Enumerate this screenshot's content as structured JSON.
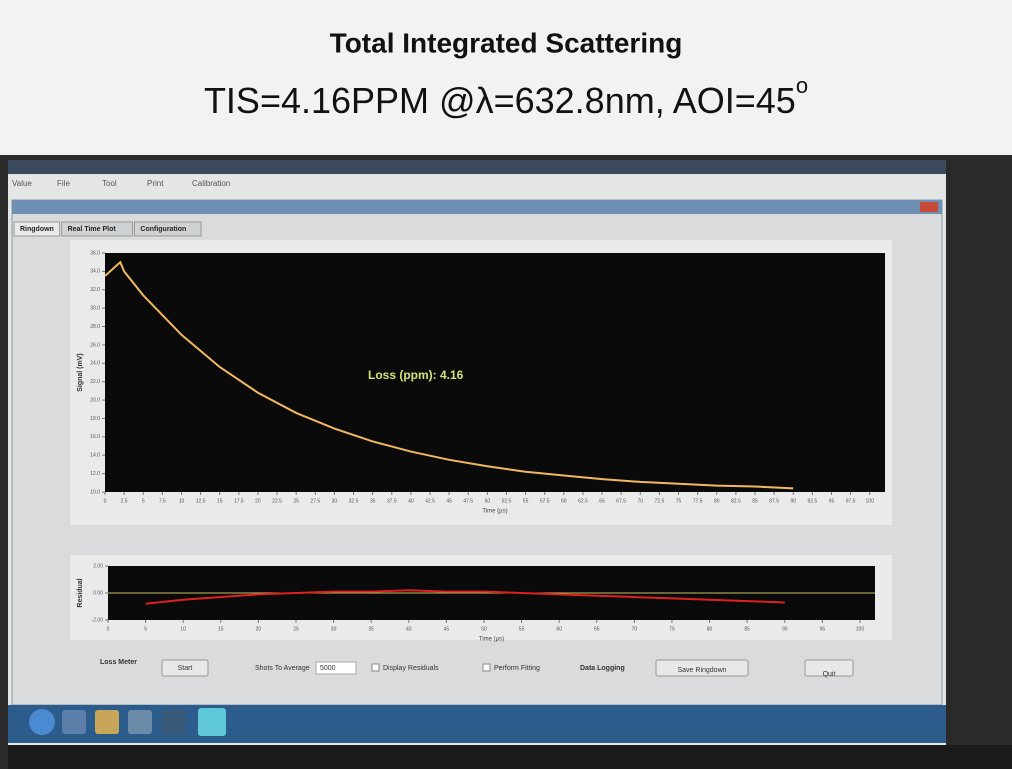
{
  "header": {
    "title": "Total Integrated Scattering",
    "subtitle": "TIS=4.16PPM @λ=632.8nm, AOI=45",
    "subtitle_superscript": "o"
  },
  "menu": [
    "Value",
    "File",
    "Tool",
    "Print",
    "Calibration"
  ],
  "tabs": [
    "Ringdown",
    "Real Time Plot",
    "Configuration"
  ],
  "controls": {
    "loss_meter": "Loss Meter",
    "start": "Start",
    "shots_label": "Shots To Average",
    "shots_value": "5000",
    "display_residuals": "Display Residuals",
    "perform_fitting": "Perform Fitting",
    "data_logging": "Data Logging",
    "save": "Save Ringdown",
    "quit": "Quit"
  },
  "chart_data": [
    {
      "type": "line",
      "x_label": "Time (µs)",
      "y_label": "Signal (mV)",
      "annotation": "Loss (ppm): 4.16",
      "x": [
        0,
        2,
        2.5,
        5,
        10,
        15,
        20,
        25,
        30,
        35,
        40,
        45,
        50,
        55,
        60,
        65,
        70,
        75,
        80,
        85,
        90
      ],
      "series": [
        {
          "color": "#f2b860",
          "values": [
            33.5,
            35.0,
            34.0,
            31.4,
            27.1,
            23.6,
            20.8,
            18.6,
            16.9,
            15.5,
            14.4,
            13.5,
            12.8,
            12.2,
            11.8,
            11.4,
            11.1,
            10.9,
            10.7,
            10.6,
            10.4
          ]
        }
      ],
      "xlim": [
        0,
        102
      ],
      "ylim": [
        10,
        36
      ],
      "xticks": [
        0,
        2.5,
        5,
        7.5,
        10,
        12.5,
        15,
        17.5,
        20,
        22.5,
        25,
        27.5,
        30,
        32.5,
        35,
        37.5,
        40,
        42.5,
        45,
        47.5,
        50,
        52.5,
        55,
        57.5,
        60,
        62.5,
        65,
        67.5,
        70,
        72.5,
        75,
        77.5,
        80,
        82.5,
        85,
        87.5,
        90,
        92.5,
        95,
        97.5,
        100
      ],
      "yticks": [
        {
          "value": 10,
          "label": "10.0"
        },
        {
          "value": 12,
          "label": "12.0"
        },
        {
          "value": 14,
          "label": "14.0"
        },
        {
          "value": 16,
          "label": "16.0"
        },
        {
          "value": 18,
          "label": "18.0"
        },
        {
          "value": 20,
          "label": "20.0"
        },
        {
          "value": 22,
          "label": "22.0"
        },
        {
          "value": 24,
          "label": "24.0"
        },
        {
          "value": 26,
          "label": "26.0"
        },
        {
          "value": 28,
          "label": "28.0"
        },
        {
          "value": 30,
          "label": "30.0"
        },
        {
          "value": 32,
          "label": "32.0"
        },
        {
          "value": 34,
          "label": "34.0"
        },
        {
          "value": 36,
          "label": "36.0"
        }
      ]
    },
    {
      "type": "line",
      "x_label": "Time (µs)",
      "y_label": "Residual",
      "x": [
        5,
        10,
        15,
        20,
        25,
        30,
        35,
        40,
        45,
        50,
        55,
        60,
        65,
        70,
        75,
        80,
        85,
        90
      ],
      "series": [
        {
          "color": "#e02020",
          "values": [
            -0.8,
            -0.5,
            -0.3,
            -0.1,
            0,
            0.1,
            0.1,
            0.2,
            0.1,
            0.1,
            0,
            -0.1,
            -0.2,
            -0.3,
            -0.4,
            -0.5,
            -0.6,
            -0.7
          ]
        }
      ],
      "xlim": [
        0,
        102
      ],
      "ylim": [
        -2,
        2
      ],
      "xticks": [
        0,
        5,
        10,
        15,
        20,
        25,
        30,
        35,
        40,
        45,
        50,
        55,
        60,
        65,
        70,
        75,
        80,
        85,
        90,
        95,
        100
      ],
      "yticks": [
        {
          "value": -2,
          "label": "-2.00"
        },
        {
          "value": 0,
          "label": "0.00"
        },
        {
          "value": 2,
          "label": "2.00"
        }
      ]
    }
  ]
}
